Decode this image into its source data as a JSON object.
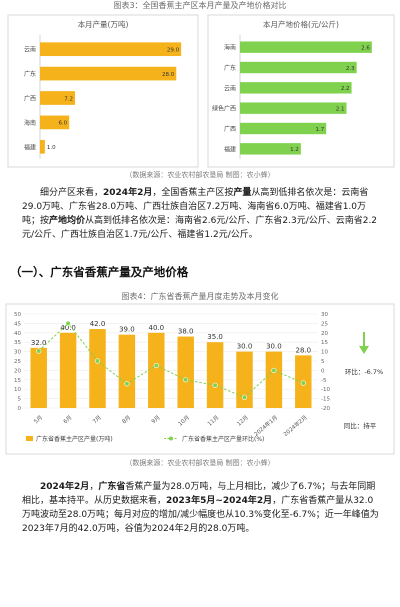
{
  "fig3": {
    "title": "图表3：全国香蕉主产区本月产量及产地价格对比",
    "source": "（数据来源：农业农村部农垦局     制图：农小蜂）",
    "charts": [
      {
        "type": "bar",
        "orientation": "horizontal",
        "title": "本月产量(万吨)",
        "categories": [
          "云南",
          "广东",
          "广西",
          "海南",
          "福建"
        ],
        "values": [
          29.0,
          28.0,
          7.2,
          6.0,
          1.0
        ],
        "value_labels": [
          "29.0",
          "28.0",
          "7.2",
          "6.0",
          "1.0"
        ],
        "xlim": [
          0,
          30
        ],
        "color": "#f5b21b"
      },
      {
        "type": "bar",
        "orientation": "horizontal",
        "title": "本月产地价格(元/公斤)",
        "categories": [
          "海南",
          "广东",
          "云南",
          "绿色广西",
          "广西",
          "福建"
        ],
        "values": [
          2.6,
          2.3,
          2.2,
          2.1,
          1.7,
          1.2
        ],
        "value_labels": [
          "2.6",
          "2.3",
          "2.2",
          "2.1",
          "1.7",
          "1.2"
        ],
        "xlim": [
          0,
          2.8
        ],
        "color": "#7fd14e"
      }
    ]
  },
  "para1": {
    "a": "细分产区来看，",
    "b": "2024年2月",
    "c": "，全国香蕉主产区按",
    "d": "产量",
    "e": "从高到低排名依次是：云南省29.0万吨、广东省28.0万吨、广西壮族自治区7.2万吨、海南省6.0万吨、福建省1.0万吨；按",
    "f": "产地均价",
    "g": "从高到低排名依次是：海南省2.6元/公斤、广东省2.3元/公斤、云南省2.2元/公斤、广西壮族自治区1.7元/公斤、福建省1.2元/公斤。"
  },
  "section": {
    "heading": "（一）、广东省香蕉产量及产地价格"
  },
  "fig4": {
    "title": "图表4：广东省香蕉产量月度走势及本月变化",
    "source": "（数据来源：农业农村部农垦局     制图：农小蜂）",
    "side_label": "环比：-6.7%",
    "side_label2": "同比：持平",
    "legend_bar": "广东省香蕉主产区产量(万吨)",
    "legend_line": "广东省香蕉主产区产量环比(%)",
    "chart_data": {
      "type": "bar+line",
      "categories": [
        "5月",
        "6月",
        "7月",
        "8月",
        "9月",
        "10月",
        "11月",
        "12月",
        "2024年1月",
        "2024年2月"
      ],
      "series": [
        {
          "name": "广东省香蕉主产区产量(万吨)",
          "type": "bar",
          "axis": "left",
          "values": [
            32.0,
            40.0,
            42.0,
            39.0,
            40.0,
            38.0,
            35.0,
            30.0,
            30.0,
            28.0
          ],
          "labels": [
            "32.0",
            "40.0",
            "42.0",
            "39.0",
            "40.0",
            "38.0",
            "35.0",
            "30.0",
            "30.0",
            "28.0"
          ]
        },
        {
          "name": "广东省香蕉主产区产量环比(%)",
          "type": "line",
          "axis": "right",
          "values": [
            10.3,
            25.0,
            5.0,
            -7.1,
            2.6,
            -5.0,
            -7.9,
            -14.3,
            0.0,
            -6.7
          ]
        }
      ],
      "y_left": {
        "ticks": [
          "50",
          "45",
          "40",
          "35",
          "30",
          "25",
          "20",
          "15",
          "10",
          "5",
          "0"
        ],
        "ylim": [
          0,
          50
        ]
      },
      "y_right": {
        "ticks": [
          "30",
          "25",
          "20",
          "15",
          "10",
          "5",
          "0",
          "-5",
          "-10",
          "-15",
          "-20"
        ],
        "ylim": [
          -20,
          30
        ]
      },
      "colors": {
        "bar": "#f5b21b",
        "line": "#7fd14e"
      }
    }
  },
  "para2": {
    "a": "2024年2月",
    "b": "，",
    "c": "广东省",
    "d": "香蕉产量为28.0万吨，与上月相比，减少了6.7%；与去年同期相比，基本持平。从历史数据来看，",
    "e": "2023年5月~2024年2月",
    "f": "，广东省香蕉产量从32.0万吨波动至28.0万吨；每月对应的增加/减少幅度也从10.3%变化至-6.7%；近一年峰值为2023年7月的42.0万吨，谷值为2024年2月的28.0万吨。"
  }
}
